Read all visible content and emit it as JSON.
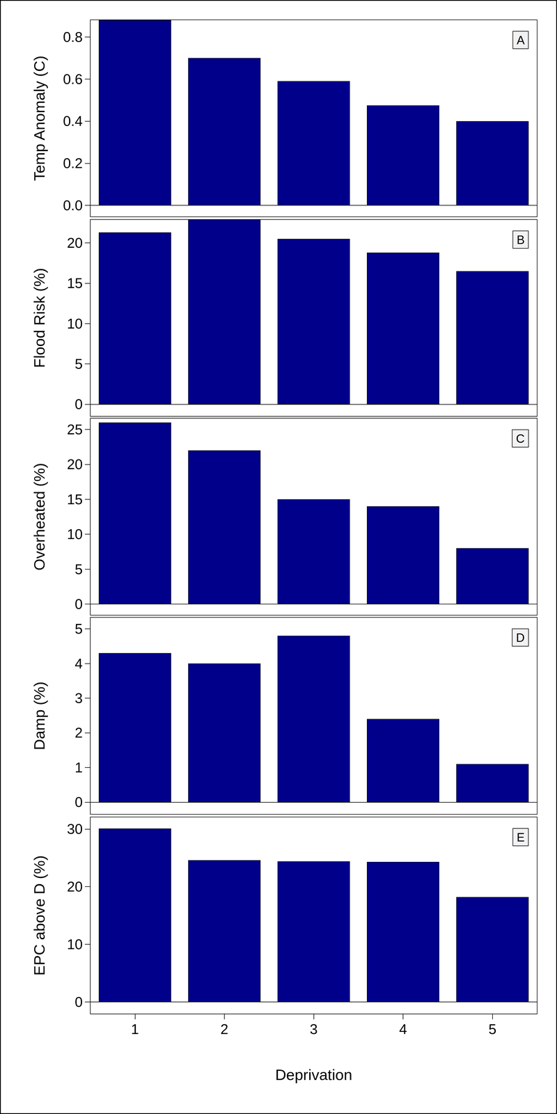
{
  "chart_data": [
    {
      "type": "bar",
      "annotation": "A",
      "ylabel": "Temp Anomaly (C)",
      "categories": [
        "1",
        "2",
        "3",
        "4",
        "5"
      ],
      "values": [
        0.88,
        0.7,
        0.59,
        0.475,
        0.4
      ],
      "color": "#00008b",
      "ylim": [
        -0.054,
        0.881
      ],
      "yticks": [
        {
          "value": 0,
          "label": "0.0"
        },
        0.2,
        0.4,
        0.6,
        0.8
      ],
      "tick_labels": "y"
    },
    {
      "type": "bar",
      "annotation": "B",
      "ylabel": "Flood Risk (%)",
      "categories": [
        "1",
        "2",
        "3",
        "4",
        "5"
      ],
      "values": [
        21.3,
        22.9,
        20.5,
        18.8,
        16.5
      ],
      "color": "#00008b",
      "ylim": [
        -1.5,
        22.9
      ],
      "yticks": [
        0,
        5,
        10,
        15,
        20
      ],
      "tick_labels": "y"
    },
    {
      "type": "bar",
      "annotation": "C",
      "ylabel": "Overheated (%)",
      "categories": [
        "1",
        "2",
        "3",
        "4",
        "5"
      ],
      "values": [
        26,
        22,
        15,
        14,
        8
      ],
      "color": "#00008b",
      "ylim": [
        -1.6,
        26.6
      ],
      "yticks": [
        0,
        5,
        10,
        15,
        20,
        25
      ],
      "tick_labels": "y"
    },
    {
      "type": "bar",
      "annotation": "D",
      "ylabel": "Damp (%)",
      "categories": [
        "1",
        "2",
        "3",
        "4",
        "5"
      ],
      "values": [
        4.3,
        4.0,
        4.8,
        2.4,
        1.1
      ],
      "color": "#00008b",
      "ylim": [
        -0.35,
        5.33
      ],
      "yticks": [
        0,
        1,
        2,
        3,
        4,
        5
      ],
      "tick_labels": "y"
    },
    {
      "type": "bar",
      "annotation": "E",
      "ylabel": "EPC above D (%)",
      "xlabel": "Deprivation",
      "categories": [
        "1",
        "2",
        "3",
        "4",
        "5"
      ],
      "values": [
        30.1,
        24.6,
        24.4,
        24.3,
        18.2
      ],
      "color": "#00008b",
      "ylim": [
        -2.1,
        32.1
      ],
      "yticks": [
        0,
        10,
        20,
        30
      ]
    }
  ]
}
